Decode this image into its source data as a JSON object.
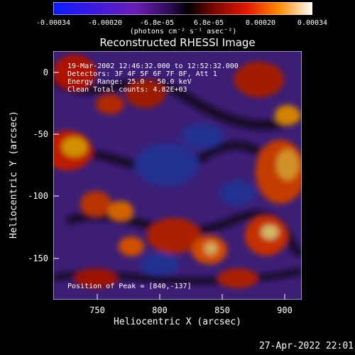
{
  "title": "Reconstructed RHESSI Image",
  "colorbar": {
    "ticks": [
      "-0.00034",
      "-0.00020",
      "-6.8e-05",
      "6.8e-05",
      "0.00020",
      "0.00034"
    ],
    "units": "(photons cm⁻² s⁻¹ asec⁻²)"
  },
  "info": {
    "line1": "19-Mar-2002 12:46:32.000 to 12:52:32.000",
    "line2": "Detectors: 3F 4F 5F 6F 7F 8F, Att 1",
    "line3": "Energy Range: 25.0 - 50.0 keV",
    "line4": "Clean    Total counts: 4.82E+03",
    "peak": "Position of Peak = [840,-137]"
  },
  "axes": {
    "xlabel": "Heliocentric X (arcsec)",
    "ylabel": "Heliocentric Y (arcsec)",
    "xticks": [
      "750",
      "800",
      "850",
      "900"
    ],
    "yticks": [
      "0",
      "-50",
      "-100",
      "-150"
    ]
  },
  "timestamp": "27-Apr-2022 22:01",
  "colors": {
    "low": "#2020ff",
    "mid": "#5a2aa0",
    "high": "#ff5a00",
    "peak": "#ffffe0"
  }
}
